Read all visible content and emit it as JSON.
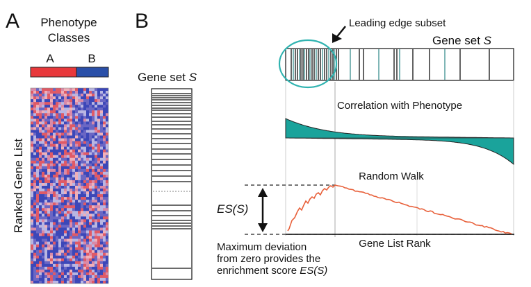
{
  "panel_a": {
    "letter": "A",
    "title_line1": "Phenotype",
    "title_line2": "Classes",
    "class_a": "A",
    "class_b": "B",
    "class_a_color": "#e8383b",
    "class_b_color": "#2a4fa8",
    "ylabel": "Ranked Gene List"
  },
  "panel_b": {
    "letter": "B",
    "gene_set_label": "Gene set ",
    "gene_set_symbol": "S",
    "leading_edge_label": "Leading edge subset",
    "correlation_label": "Correlation with Phenotype",
    "random_walk_label": "Random Walk",
    "es_label": "ES(S)",
    "xlabel": "Gene List Rank",
    "caption_line1": "Maximum deviation",
    "caption_line2": "from zero provides the",
    "caption_line3": "enrichment score ",
    "caption_symbol": "ES(S)",
    "teal_color": "#1aa39b",
    "walk_color": "#e8603a",
    "circle_color": "#2fb3b0"
  }
}
